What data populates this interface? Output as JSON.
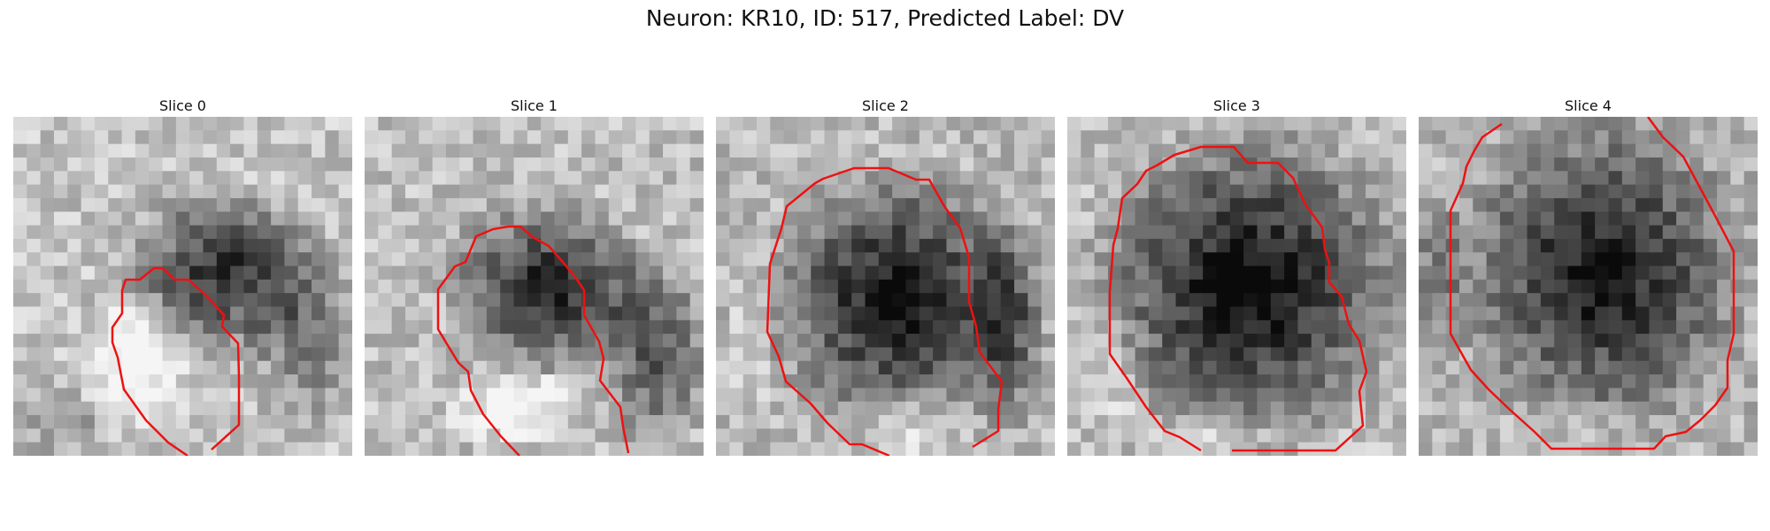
{
  "figure": {
    "title": "Neuron: KR10, ID: 517, Predicted Label: DV"
  },
  "panels": [
    {
      "title": "Slice 0",
      "contour_color": "#ee1111"
    },
    {
      "title": "Slice 1",
      "contour_color": "#ee1111"
    },
    {
      "title": "Slice 2",
      "contour_color": "#ee1111"
    },
    {
      "title": "Slice 3",
      "contour_color": "#ee1111"
    },
    {
      "title": "Slice 4",
      "contour_color": "#ee1111"
    }
  ]
}
